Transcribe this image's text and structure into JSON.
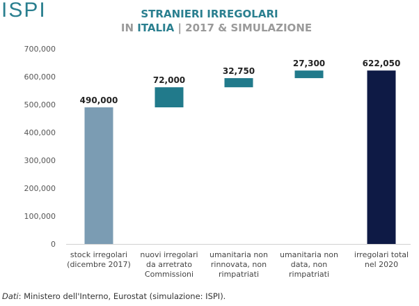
{
  "logo": "ISPI",
  "title_line1": "STRANIERI IRREGOLARI",
  "title_line2_prefix": "IN ",
  "title_line2_highlight": "ITALIA",
  "title_line2_suffix": " | 2017 & SIMULAZIONE",
  "source_label": "Dati",
  "source_text": ": Ministero dell'Interno, Eurostat (simulazione: ISPI).",
  "chart_data": {
    "type": "waterfall",
    "ylim": [
      0,
      700000
    ],
    "yticks": [
      0,
      100000,
      200000,
      300000,
      400000,
      500000,
      600000,
      700000
    ],
    "ytick_labels": [
      "0",
      "100,000",
      "200,000",
      "300,000",
      "400,000",
      "500,000",
      "600,000",
      "700,000"
    ],
    "grid": false,
    "categories": [
      [
        "stock irregolari",
        "(dicembre 2017)"
      ],
      [
        "nuovi irregolari",
        "da arretrato",
        "Commissioni"
      ],
      [
        "umanitaria non",
        "rinnovata, non",
        "rimpatriati"
      ],
      [
        "umanitaria non",
        "data, non",
        "rimpatriati"
      ],
      [
        "irregolari total",
        "nel 2020"
      ]
    ],
    "bars": [
      {
        "start": 0,
        "end": 490000,
        "label": "490,000",
        "color": "#7b9cb3"
      },
      {
        "start": 490000,
        "end": 562000,
        "label": "72,000",
        "color": "#217a8b"
      },
      {
        "start": 562000,
        "end": 594750,
        "label": "32,750",
        "color": "#217a8b"
      },
      {
        "start": 594750,
        "end": 622050,
        "label": "27,300",
        "color": "#217a8b"
      },
      {
        "start": 0,
        "end": 622050,
        "label": "622,050",
        "color": "#0e1a45"
      }
    ]
  }
}
